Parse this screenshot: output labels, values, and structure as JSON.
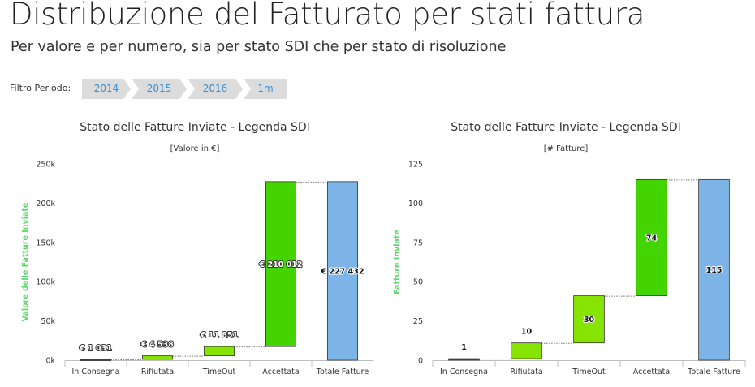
{
  "page": {
    "title": "Distribuzione del Fatturato per stati fattura",
    "subtitle": "Per valore e per numero, sia per stato SDI che per stato di risoluzione"
  },
  "filter": {
    "label": "Filtro Periodo:",
    "steps": [
      "2014",
      "2015",
      "2016",
      "1m"
    ]
  },
  "colors": {
    "in_consegna": "#3d4d5c",
    "accettata": "#44d400",
    "rifiutata_timeout": "#86e400",
    "totale": "#7db4e8",
    "axis_title": "#5fd36c",
    "filter_text": "#3b8fd0"
  },
  "chart_data": [
    {
      "type": "waterfall",
      "title": "Stato delle Fatture Inviate - Legenda SDI",
      "subtitle": "[Valore in €]",
      "ylabel": "Valore delle Fatture Inviate",
      "categories": [
        "In Consegna",
        "Rifiutata",
        "TimeOut",
        "Accettata",
        "Totale Fatture"
      ],
      "values": [
        1031,
        4538,
        11851,
        210012,
        227432
      ],
      "is_total": [
        false,
        false,
        false,
        false,
        true
      ],
      "labels": [
        "€ 1 031",
        "€ 4 538",
        "€ 11 851",
        "€ 210 012",
        "€ 227 432"
      ],
      "yticks": [
        "0k",
        "50k",
        "100k",
        "150k",
        "200k",
        "250k"
      ],
      "ylim": [
        0,
        250000
      ],
      "grid": false
    },
    {
      "type": "waterfall",
      "title": "Stato delle Fatture Inviate - Legenda SDI",
      "subtitle": "[# Fatture]",
      "ylabel": "Fatture Inviate",
      "categories": [
        "In Consegna",
        "Rifiutata",
        "TimeOut",
        "Accettata",
        "Totale Fatture"
      ],
      "values": [
        1,
        10,
        30,
        74,
        115
      ],
      "is_total": [
        false,
        false,
        false,
        false,
        true
      ],
      "labels": [
        "1",
        "10",
        "30",
        "74",
        "115"
      ],
      "yticks": [
        "0",
        "25",
        "50",
        "75",
        "100",
        "125"
      ],
      "ylim": [
        0,
        125
      ],
      "grid": false
    }
  ]
}
